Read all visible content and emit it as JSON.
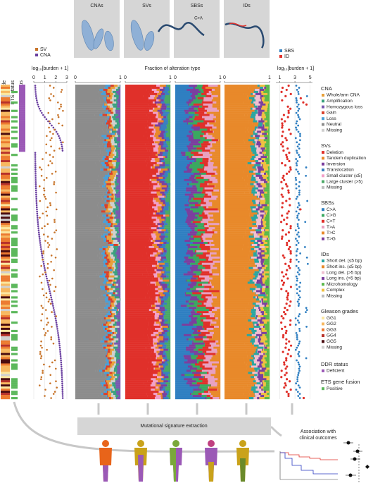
{
  "header": {
    "panels": [
      "CNAs",
      "SVs",
      "SBSs",
      "IDs"
    ],
    "annotation": "C>A"
  },
  "track_labels": [
    "Gleason grade",
    "ETS status",
    "DDR status"
  ],
  "burden_left": {
    "axis_label": "log₁₀[burden + 1]",
    "legend": [
      {
        "label": "SV",
        "color": "#c8742a"
      },
      {
        "label": "CNA",
        "color": "#6a3fa0"
      }
    ],
    "ticks": [
      0,
      1,
      2,
      3
    ]
  },
  "fraction": {
    "axis_label": "Fraction of alteration type",
    "ticks": [
      0,
      1
    ]
  },
  "burden_right": {
    "axis_label": "log₁₀[burden + 1]",
    "legend": [
      {
        "label": "SBS",
        "color": "#2f7fc1"
      },
      {
        "label": "ID",
        "color": "#e0302a"
      }
    ],
    "ticks": [
      1,
      3,
      5
    ]
  },
  "legend": {
    "sections": [
      {
        "title": "CNA",
        "items": [
          {
            "label": "Whole/arm CNA",
            "color": "#e8a03a"
          },
          {
            "label": "Amplification",
            "color": "#3aa17e"
          },
          {
            "label": "Homozygous loss",
            "color": "#7a5ab0"
          },
          {
            "label": "Gain",
            "color": "#d9412b"
          },
          {
            "label": "Loss",
            "color": "#4aa0d8"
          },
          {
            "label": "Neutral",
            "color": "#8c8c8c"
          },
          {
            "label": "Missing",
            "color": "#cfcfcf"
          }
        ]
      },
      {
        "title": "SVs",
        "items": [
          {
            "label": "Deletion",
            "color": "#e0302a"
          },
          {
            "label": "Tandem duplication",
            "color": "#e8892a"
          },
          {
            "label": "Inversion",
            "color": "#7b3f9e"
          },
          {
            "label": "Translocation",
            "color": "#3a7fc0"
          },
          {
            "label": "Small cluster (≤5)",
            "color": "#f2a0c8"
          },
          {
            "label": "Large cluster (>5)",
            "color": "#4aa866"
          },
          {
            "label": "Missing",
            "color": "#bdbdbd"
          }
        ]
      },
      {
        "title": "SBSs",
        "items": [
          {
            "label": "C>A",
            "color": "#2f7fc1"
          },
          {
            "label": "C>G",
            "color": "#3aa860"
          },
          {
            "label": "C>T",
            "color": "#e0302a"
          },
          {
            "label": "T>A",
            "color": "#e8a0c0"
          },
          {
            "label": "T>C",
            "color": "#e8892a"
          },
          {
            "label": "T>G",
            "color": "#7b3f9e"
          }
        ]
      },
      {
        "title": "IDs",
        "items": [
          {
            "label": "Short del. (≤5 bp)",
            "color": "#2aa6a0"
          },
          {
            "label": "Short ins. (≤5 bp)",
            "color": "#e8892a"
          },
          {
            "label": "Long del. (>5 bp)",
            "color": "#f0c0d0"
          },
          {
            "label": "Long ins. (>5 bp)",
            "color": "#7b3f9e"
          },
          {
            "label": "Microhomology",
            "color": "#5ab84a"
          },
          {
            "label": "Complex",
            "color": "#f0c040"
          },
          {
            "label": "Missing",
            "color": "#bdbdbd"
          }
        ]
      },
      {
        "title": "Gleason grades",
        "items": [
          {
            "label": "GG1",
            "color": "#fbe7a0"
          },
          {
            "label": "GG2",
            "color": "#f7b860"
          },
          {
            "label": "GG3",
            "color": "#ec7a30"
          },
          {
            "label": "GG4",
            "color": "#b8322a"
          },
          {
            "label": "GG5",
            "color": "#4a0c10"
          },
          {
            "label": "Missing",
            "color": "#d0d0d0"
          }
        ]
      },
      {
        "title": "DDR status",
        "items": [
          {
            "label": "Deficient",
            "color": "#9b59b6"
          }
        ]
      },
      {
        "title": "ETS gene fusion",
        "items": [
          {
            "label": "Positive",
            "color": "#5cb85c"
          }
        ]
      }
    ]
  },
  "bottom": {
    "extraction": "Mutational signature extraction",
    "association": [
      "Association with",
      "clinical outcomes"
    ]
  }
}
